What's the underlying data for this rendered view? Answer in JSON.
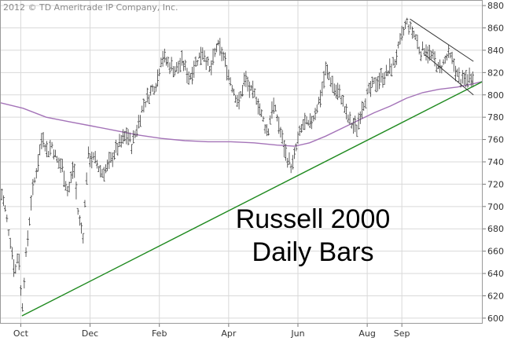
{
  "copyright": "2012 © TD Ameritrade IP Company, Inc.",
  "annotation_lines": [
    "Russell 2000",
    "Daily Bars"
  ],
  "colors": {
    "grid": "#d9d9d9",
    "bars": "#3a3a3a",
    "moving_average": "#a473b8",
    "trendline": "#1f8a1f",
    "channel": "#333333",
    "background": "#ffffff"
  },
  "chart_data": {
    "type": "ohlc",
    "grid": true,
    "y_axis_side": "right",
    "ylim": [
      595,
      885
    ],
    "y_ticks": [
      600,
      620,
      640,
      660,
      680,
      700,
      720,
      740,
      760,
      780,
      800,
      820,
      840,
      860,
      880
    ],
    "x_ticks": [
      {
        "label": "Oct",
        "day": 18
      },
      {
        "label": "Dec",
        "day": 78
      },
      {
        "label": "Feb",
        "day": 138
      },
      {
        "label": "Apr",
        "day": 198
      },
      {
        "label": "Jun",
        "day": 258
      },
      {
        "label": "Aug",
        "day": 318
      },
      {
        "label": "Sep",
        "day": 348
      }
    ],
    "x_range": [
      0,
      418
    ],
    "price_path": [
      [
        0,
        718
      ],
      [
        4,
        700
      ],
      [
        9,
        670
      ],
      [
        13,
        640
      ],
      [
        16,
        662
      ],
      [
        19,
        605
      ],
      [
        22,
        650
      ],
      [
        27,
        705
      ],
      [
        32,
        735
      ],
      [
        37,
        765
      ],
      [
        41,
        748
      ],
      [
        45,
        755
      ],
      [
        49,
        742
      ],
      [
        54,
        735
      ],
      [
        59,
        712
      ],
      [
        64,
        738
      ],
      [
        68,
        690
      ],
      [
        72,
        675
      ],
      [
        76,
        745
      ],
      [
        82,
        742
      ],
      [
        88,
        730
      ],
      [
        93,
        735
      ],
      [
        99,
        748
      ],
      [
        105,
        758
      ],
      [
        110,
        765
      ],
      [
        114,
        755
      ],
      [
        118,
        768
      ],
      [
        124,
        790
      ],
      [
        130,
        802
      ],
      [
        136,
        812
      ],
      [
        140,
        835
      ],
      [
        146,
        828
      ],
      [
        152,
        822
      ],
      [
        158,
        830
      ],
      [
        164,
        815
      ],
      [
        170,
        830
      ],
      [
        176,
        840
      ],
      [
        182,
        820
      ],
      [
        188,
        845
      ],
      [
        193,
        836
      ],
      [
        198,
        818
      ],
      [
        202,
        805
      ],
      [
        207,
        792
      ],
      [
        212,
        815
      ],
      [
        217,
        803
      ],
      [
        222,
        798
      ],
      [
        227,
        780
      ],
      [
        232,
        765
      ],
      [
        236,
        792
      ],
      [
        240,
        780
      ],
      [
        244,
        762
      ],
      [
        248,
        745
      ],
      [
        253,
        735
      ],
      [
        258,
        760
      ],
      [
        263,
        775
      ],
      [
        268,
        772
      ],
      [
        272,
        782
      ],
      [
        278,
        800
      ],
      [
        282,
        822
      ],
      [
        286,
        815
      ],
      [
        290,
        804
      ],
      [
        295,
        800
      ],
      [
        300,
        782
      ],
      [
        304,
        774
      ],
      [
        309,
        770
      ],
      [
        313,
        788
      ],
      [
        318,
        800
      ],
      [
        324,
        810
      ],
      [
        330,
        815
      ],
      [
        336,
        820
      ],
      [
        342,
        830
      ],
      [
        348,
        852
      ],
      [
        352,
        865
      ],
      [
        356,
        858
      ],
      [
        360,
        852
      ],
      [
        364,
        838
      ],
      [
        368,
        842
      ],
      [
        372,
        836
      ],
      [
        376,
        832
      ],
      [
        380,
        822
      ],
      [
        384,
        828
      ],
      [
        388,
        836
      ],
      [
        392,
        830
      ],
      [
        396,
        818
      ],
      [
        400,
        812
      ],
      [
        405,
        815
      ],
      [
        410,
        818
      ]
    ],
    "moving_average_path": [
      [
        0,
        793
      ],
      [
        20,
        788
      ],
      [
        40,
        780
      ],
      [
        60,
        776
      ],
      [
        80,
        772
      ],
      [
        100,
        768
      ],
      [
        120,
        764
      ],
      [
        140,
        761
      ],
      [
        160,
        759
      ],
      [
        180,
        758
      ],
      [
        200,
        758
      ],
      [
        220,
        757
      ],
      [
        240,
        755
      ],
      [
        255,
        754
      ],
      [
        268,
        757
      ],
      [
        282,
        763
      ],
      [
        296,
        770
      ],
      [
        310,
        777
      ],
      [
        324,
        784
      ],
      [
        338,
        790
      ],
      [
        352,
        797
      ],
      [
        366,
        802
      ],
      [
        380,
        805
      ],
      [
        396,
        807
      ],
      [
        410,
        810
      ],
      [
        418,
        812
      ]
    ],
    "trendline": [
      [
        19,
        602
      ],
      [
        418,
        812
      ]
    ],
    "channel_upper": [
      [
        355,
        868
      ],
      [
        410,
        830
      ]
    ],
    "channel_lower": [
      [
        368,
        836
      ],
      [
        410,
        800
      ]
    ]
  }
}
